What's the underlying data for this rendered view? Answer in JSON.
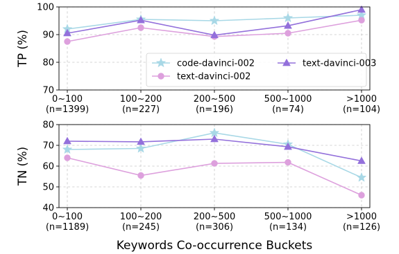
{
  "chart_data": [
    {
      "type": "line",
      "ylabel": "TP (%)",
      "ylim": [
        70,
        100
      ],
      "yticks": [
        70,
        80,
        90,
        100
      ],
      "grid": true,
      "legend_placement": "lower-right",
      "categories": [
        "0~100",
        "100~200",
        "200~500",
        "500~1000",
        ">1000"
      ],
      "category_counts": [
        "(n=1399)",
        "(n=227)",
        "(n=196)",
        "(n=74)",
        "(n=104)"
      ],
      "series": [
        {
          "name": "code-davinci-002",
          "color": "#a8d8e6",
          "marker": "star",
          "values": [
            92.0,
            95.5,
            95.0,
            96.0,
            97.0
          ]
        },
        {
          "name": "text-davinci-002",
          "color": "#dda0dd",
          "marker": "circle",
          "values": [
            87.5,
            92.5,
            89.3,
            90.5,
            95.2
          ]
        },
        {
          "name": "text-davinci-003",
          "color": "#9370db",
          "marker": "triangle",
          "values": [
            90.5,
            95.2,
            89.8,
            93.2,
            99.0
          ]
        }
      ]
    },
    {
      "type": "line",
      "ylabel": "TN (%)",
      "xlabel": "Keywords Co-occurrence Buckets",
      "ylim": [
        40,
        80
      ],
      "yticks": [
        40,
        50,
        60,
        70,
        80
      ],
      "grid": true,
      "categories": [
        "0~100",
        "100~200",
        "200~500",
        "500~1000",
        ">1000"
      ],
      "category_counts": [
        "(n=1189)",
        "(n=245)",
        "(n=306)",
        "(n=134)",
        "(n=126)"
      ],
      "series": [
        {
          "name": "code-davinci-002",
          "color": "#a8d8e6",
          "marker": "star",
          "values": [
            68.0,
            68.5,
            76.0,
            70.5,
            54.5
          ]
        },
        {
          "name": "text-davinci-002",
          "color": "#dda0dd",
          "marker": "circle",
          "values": [
            64.0,
            55.5,
            61.3,
            61.8,
            46.0
          ]
        },
        {
          "name": "text-davinci-003",
          "color": "#9370db",
          "marker": "triangle",
          "values": [
            72.0,
            71.7,
            73.0,
            69.3,
            62.5
          ]
        }
      ]
    }
  ]
}
